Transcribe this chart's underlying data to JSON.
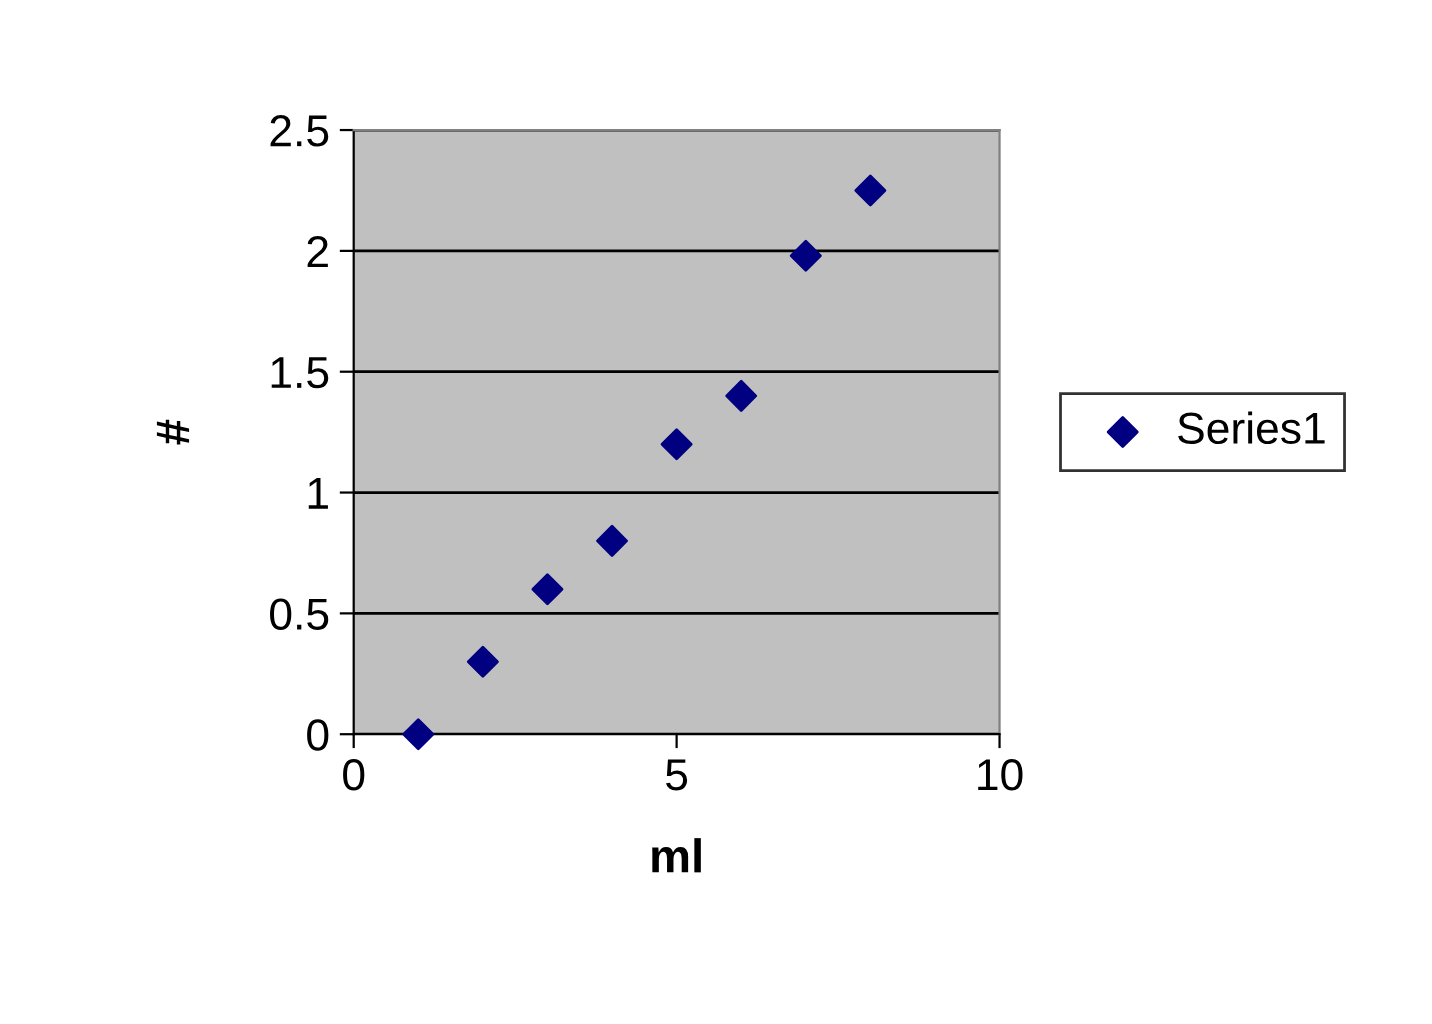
{
  "chart_data": {
    "type": "scatter",
    "xlabel": "ml",
    "ylabel": "#",
    "x": [
      1,
      2,
      3,
      4,
      5,
      6,
      7,
      8
    ],
    "series": [
      {
        "name": "Series1",
        "color": "#000080",
        "values": [
          0,
          0.3,
          0.6,
          0.8,
          1.2,
          1.4,
          1.98,
          2.25
        ]
      }
    ],
    "xlim": [
      0,
      10
    ],
    "xticks": [
      0,
      5,
      10
    ],
    "ylim": [
      0,
      2.5
    ],
    "yticks": [
      0,
      0.5,
      1,
      1.5,
      2,
      2.5
    ],
    "grid": "y",
    "legend": "right",
    "marker": "diamond"
  }
}
